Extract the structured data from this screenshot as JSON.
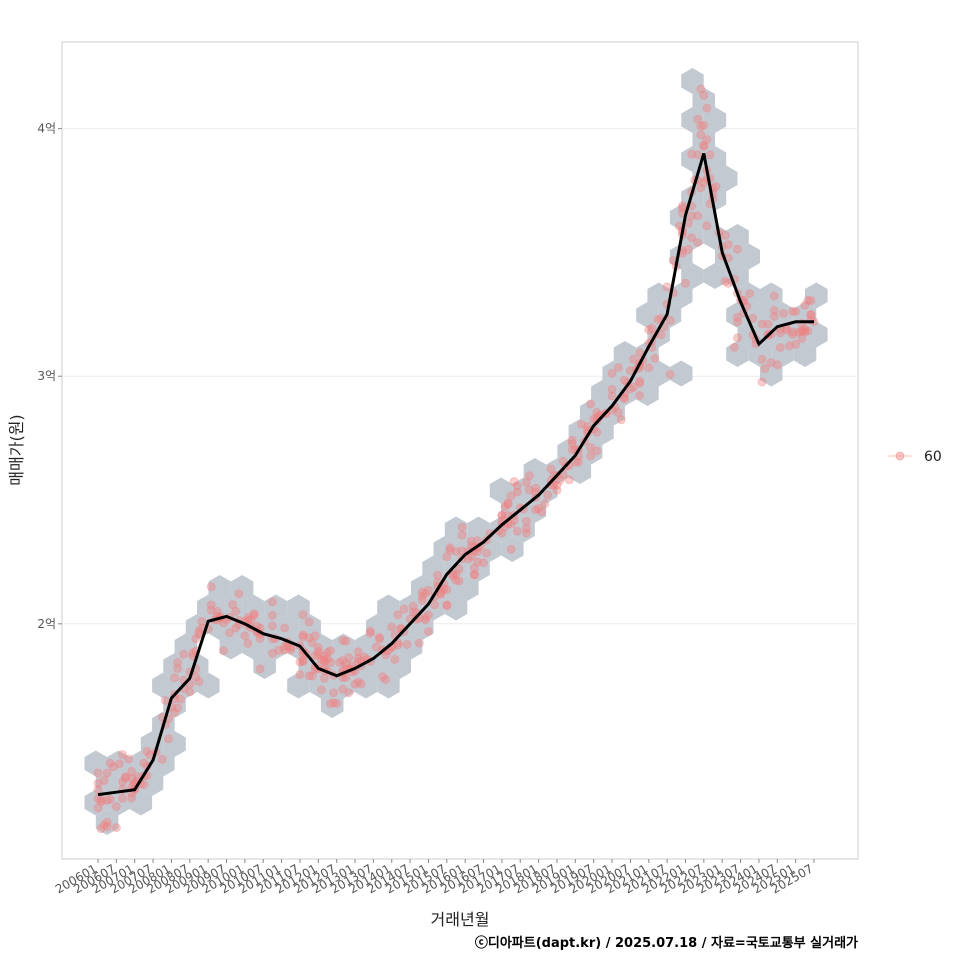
{
  "chart_data": {
    "type": "scatter",
    "xlabel": "거래년월",
    "ylabel": "매매가(원)",
    "caption": "ⓒ디아파트(dapt.kr) / 2025.07.18 / 자료=국토교통부 실거래가",
    "legend": {
      "position": "right",
      "entries": [
        "60"
      ]
    },
    "grid": true,
    "colors": {
      "points": "#f08080",
      "hex": "#c3c9d1",
      "trend": "#000000",
      "panel_border": "#cccccc",
      "gridline": "#ececec"
    },
    "ylim": [
      1.05,
      4.35
    ],
    "y_ticks": [
      {
        "value": 2,
        "label": "2억"
      },
      {
        "value": 3,
        "label": "3억"
      },
      {
        "value": 4,
        "label": "4억"
      }
    ],
    "x_ticks": [
      "200601",
      "200607",
      "200701",
      "200707",
      "200801",
      "200807",
      "200901",
      "200907",
      "201001",
      "201007",
      "201101",
      "201107",
      "201201",
      "201207",
      "201301",
      "201307",
      "201401",
      "201407",
      "201501",
      "201507",
      "201601",
      "201607",
      "201701",
      "201707",
      "201801",
      "201807",
      "201901",
      "201907",
      "202001",
      "202007",
      "202101",
      "202107",
      "202201",
      "202207",
      "202301",
      "202307",
      "202401",
      "202407",
      "202501",
      "202507"
    ],
    "series": [
      {
        "name": "60",
        "trend": [
          [
            "200601",
            1.31
          ],
          [
            "200607",
            1.32
          ],
          [
            "200701",
            1.33
          ],
          [
            "200707",
            1.45
          ],
          [
            "200801",
            1.7
          ],
          [
            "200807",
            1.78
          ],
          [
            "200901",
            2.01
          ],
          [
            "200907",
            2.03
          ],
          [
            "201001",
            2.0
          ],
          [
            "201007",
            1.96
          ],
          [
            "201101",
            1.94
          ],
          [
            "201107",
            1.91
          ],
          [
            "201201",
            1.82
          ],
          [
            "201207",
            1.79
          ],
          [
            "201301",
            1.82
          ],
          [
            "201307",
            1.86
          ],
          [
            "201401",
            1.92
          ],
          [
            "201407",
            2.0
          ],
          [
            "201501",
            2.08
          ],
          [
            "201507",
            2.2
          ],
          [
            "201601",
            2.28
          ],
          [
            "201607",
            2.33
          ],
          [
            "201701",
            2.4
          ],
          [
            "201707",
            2.46
          ],
          [
            "201801",
            2.52
          ],
          [
            "201807",
            2.6
          ],
          [
            "201901",
            2.68
          ],
          [
            "201907",
            2.8
          ],
          [
            "202001",
            2.88
          ],
          [
            "202007",
            2.98
          ],
          [
            "202101",
            3.12
          ],
          [
            "202107",
            3.25
          ],
          [
            "202201",
            3.65
          ],
          [
            "202207",
            3.9
          ],
          [
            "202301",
            3.5
          ],
          [
            "202307",
            3.3
          ],
          [
            "202401",
            3.13
          ],
          [
            "202407",
            3.2
          ],
          [
            "202501",
            3.22
          ],
          [
            "202507",
            3.22
          ]
        ]
      }
    ]
  }
}
